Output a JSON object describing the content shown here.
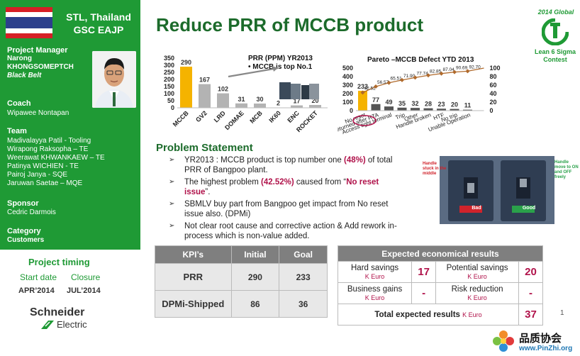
{
  "header": {
    "location": "STL, Thailand",
    "unit": "GSC EAJP",
    "title": "Reduce PRR of MCCB product",
    "contest_year": "2014 Global",
    "contest_name_1": "Lean 6 Sigma",
    "contest_name_2": "Contest"
  },
  "sidebar": {
    "pm_heading": "Project Manager",
    "pm_first": "Narong",
    "pm_last": "KHONGSOMEPTCH",
    "pm_belt": "Black Belt",
    "coach_heading": "Coach",
    "coach_name": "Wipawee Nontapan",
    "team_heading": "Team",
    "team": [
      "Madivalayya Patil -  Tooling",
      "Wirapong Raksopha – TE",
      "Weerawat KHWANKAEW – TE",
      "Patinya WICHIEN - TE",
      "Pairoj Janya - SQE",
      "Jaruwan Saetae – MQE"
    ],
    "sponsor_heading": "Sponsor",
    "sponsor_name": "Cedric Darmois",
    "category_heading": "Category",
    "category_name": "Customers"
  },
  "timing": {
    "title": "Project timing",
    "start_label": "Start date",
    "closure_label": "Closure",
    "start": "APR’2014",
    "closure": "JUL’2014"
  },
  "brand": {
    "name1": "Schneider",
    "name2": "Electric"
  },
  "chart_data": [
    {
      "type": "bar",
      "title": "PRR (PPM) YR2013",
      "annotation": "• MCCB is top  No.1",
      "categories": [
        "MCCB",
        "GV2",
        "LRD",
        "DOMAE",
        "MCB",
        "IK60",
        "ENC",
        "ROCKET"
      ],
      "values": [
        290,
        167,
        102,
        31,
        30,
        2,
        17,
        20
      ],
      "value_labels": [
        "290",
        "167",
        "102",
        "31",
        "30",
        "2",
        "17",
        "20"
      ],
      "yticks": [
        "350",
        "300",
        "250",
        "200",
        "150",
        "100",
        "50",
        "0"
      ],
      "ylim": [
        0,
        350
      ],
      "colors": {
        "highlight": "#f5b300",
        "bar": "#b3b3b3"
      }
    },
    {
      "type": "bar",
      "title": "Pareto –MCCB Defect YTD  2013",
      "categories": [
        "No reset",
        "Not returned after RTA",
        "Access tight terminal",
        "Trip",
        "Other",
        "Handle broken",
        "HTF",
        "No trip",
        "Unable Operation"
      ],
      "values": [
        233,
        77,
        49,
        35,
        32,
        28,
        23,
        20,
        11
      ],
      "value_labels": [
        "233",
        "77",
        "49",
        "35",
        "32",
        "28",
        "23",
        "20",
        "11"
      ],
      "cumulative_percent": [
        42.52,
        56.57,
        65.51,
        71.9,
        77.74,
        82.85,
        87.04,
        90.69,
        92.7
      ],
      "cumulative_labels": [
        "42.52",
        "56.57",
        "65.51",
        "71.90",
        "77.74",
        "82.85",
        "87.04",
        "90.69",
        "92.70"
      ],
      "yticks_left": [
        "500",
        "400",
        "300",
        "200",
        "100",
        "0"
      ],
      "yticks_right": [
        "100",
        "80",
        "60",
        "40",
        "20",
        "0"
      ],
      "ylim": [
        0,
        500
      ],
      "ylim_right": [
        0,
        100
      ],
      "colors": {
        "highlight": "#f5b300",
        "bar": "#555555",
        "line": "#b06a2c"
      }
    }
  ],
  "problem": {
    "title": "Problem Statement",
    "items": [
      {
        "pre": "YR2013 : MCCB product is top number one ",
        "em": "(48%)",
        "post": " of total PRR of Bangpoo plant."
      },
      {
        "pre": "The highest problem ",
        "em": "(42.52%)",
        "post": " caused from “",
        "em2": "No reset issue",
        "post2": "”."
      },
      {
        "pre": "SBMLV buy part from Bangpoo get impact from No reset issue also. (DPMi)"
      },
      {
        "pre": "Not clear root cause and corrective action & Add rework in-process which is non-value added."
      }
    ]
  },
  "photo": {
    "bad_note": "Handle stuck in the middle",
    "good_note": "Handle move to ON and OFF freely",
    "bad_label": "Bad",
    "good_label": "Good"
  },
  "kpi": {
    "headers": [
      "KPI’s",
      "Initial",
      "Goal"
    ],
    "rows": [
      [
        "PRR",
        "290",
        "233"
      ],
      [
        "DPMi-Shipped",
        "86",
        "36"
      ]
    ]
  },
  "economical": {
    "title": "Expected economical results",
    "unit": "K Euro",
    "hard_savings": "Hard savings",
    "hard_savings_val": "17",
    "potential_savings": "Potential savings",
    "potential_savings_val": "20",
    "business_gains": "Business gains",
    "business_gains_val": "-",
    "risk_reduction": "Risk reduction",
    "risk_reduction_val": "-",
    "total_label": "Total expected results",
    "total_val": "37"
  },
  "page_number": "1",
  "watermark": {
    "cn": "品质协会",
    "url": "www.PinZhi.org"
  }
}
